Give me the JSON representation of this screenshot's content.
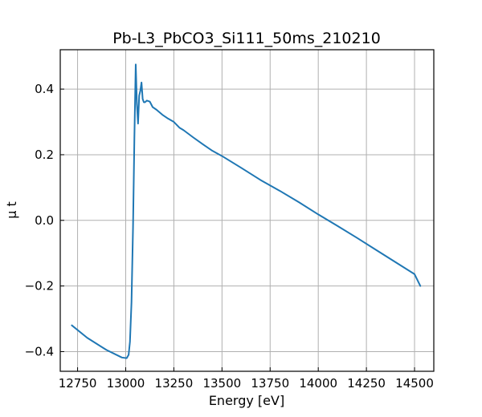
{
  "chart_data": {
    "type": "line",
    "title": "Pb-L3_PbCO3_Si111_50ms_210210",
    "xlabel": "Energy [eV]",
    "ylabel": "μ t",
    "xlim": [
      12660,
      14600
    ],
    "ylim": [
      -0.46,
      0.52
    ],
    "xticks": [
      12750,
      13000,
      13250,
      13500,
      13750,
      14000,
      14250,
      14500
    ],
    "xtick_labels": [
      "12750",
      "13000",
      "13250",
      "13500",
      "13750",
      "14000",
      "14250",
      "14500"
    ],
    "yticks": [
      -0.4,
      -0.2,
      0.0,
      0.2,
      0.4
    ],
    "ytick_labels": [
      "−0.4",
      "−0.2",
      "0.0",
      "0.2",
      "0.4"
    ],
    "grid": true,
    "series": [
      {
        "color": "#1f77b4",
        "x": [
          12720,
          12800,
          12900,
          12980,
          13005,
          13015,
          13022,
          13030,
          13038,
          13045,
          13052,
          13058,
          13064,
          13070,
          13076,
          13082,
          13088,
          13094,
          13100,
          13110,
          13125,
          13140,
          13160,
          13190,
          13220,
          13250,
          13280,
          13300,
          13350,
          13400,
          13450,
          13500,
          13600,
          13700,
          13800,
          13900,
          14000,
          14100,
          14200,
          14300,
          14400,
          14500,
          14530
        ],
        "y": [
          -0.32,
          -0.358,
          -0.395,
          -0.418,
          -0.42,
          -0.41,
          -0.37,
          -0.25,
          -0.02,
          0.25,
          0.475,
          0.355,
          0.295,
          0.38,
          0.395,
          0.42,
          0.37,
          0.36,
          0.36,
          0.365,
          0.362,
          0.345,
          0.337,
          0.322,
          0.31,
          0.3,
          0.282,
          0.275,
          0.253,
          0.232,
          0.212,
          0.196,
          0.16,
          0.123,
          0.09,
          0.055,
          0.018,
          -0.017,
          -0.053,
          -0.09,
          -0.127,
          -0.164,
          -0.2
        ]
      }
    ]
  }
}
